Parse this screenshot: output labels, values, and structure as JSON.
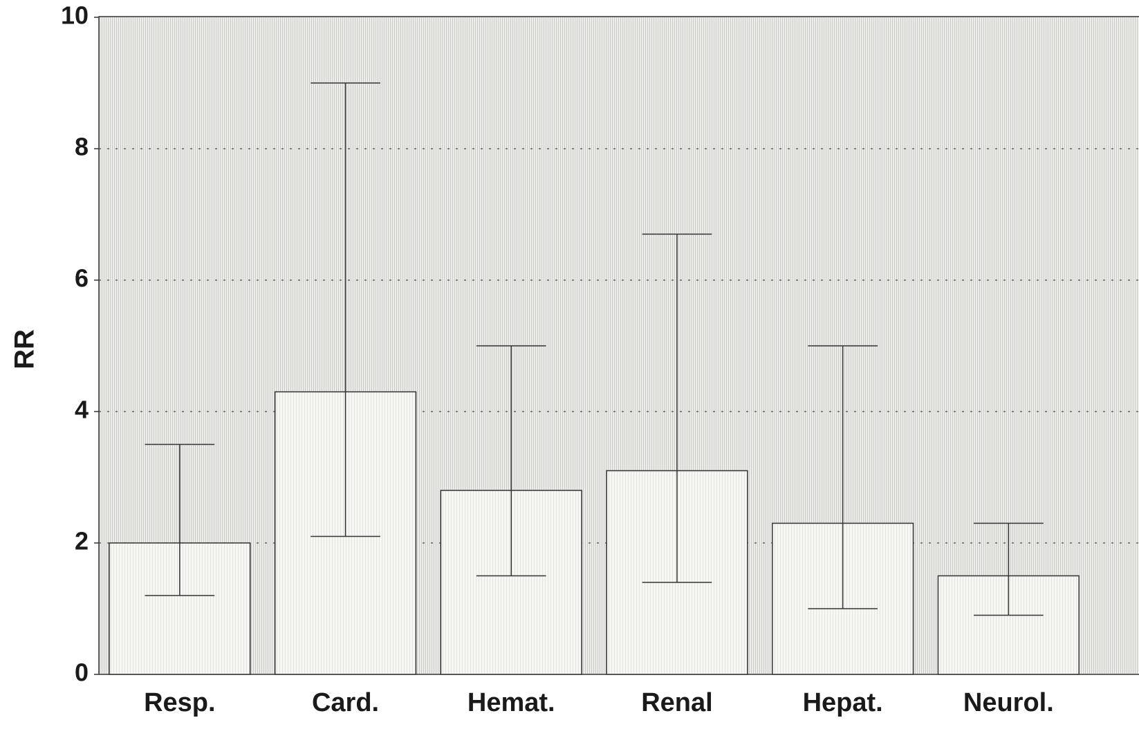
{
  "chart_data": {
    "type": "bar",
    "y_label": "RR",
    "categories": [
      "Resp.",
      "Card.",
      "Hemat.",
      "Renal",
      "Hepat.",
      "Neurol."
    ],
    "series": [
      {
        "values": [
          2.0,
          4.3,
          2.8,
          3.1,
          2.3,
          1.5
        ],
        "lower": [
          1.2,
          2.1,
          1.5,
          1.4,
          1.0,
          0.9
        ],
        "upper": [
          3.5,
          9.0,
          5.0,
          6.7,
          5.0,
          2.3
        ],
        "color": "#f6f6f4"
      }
    ],
    "ylim": [
      0,
      10
    ],
    "yticks": [
      0,
      2,
      4,
      6,
      8,
      10
    ],
    "grid": true
  }
}
